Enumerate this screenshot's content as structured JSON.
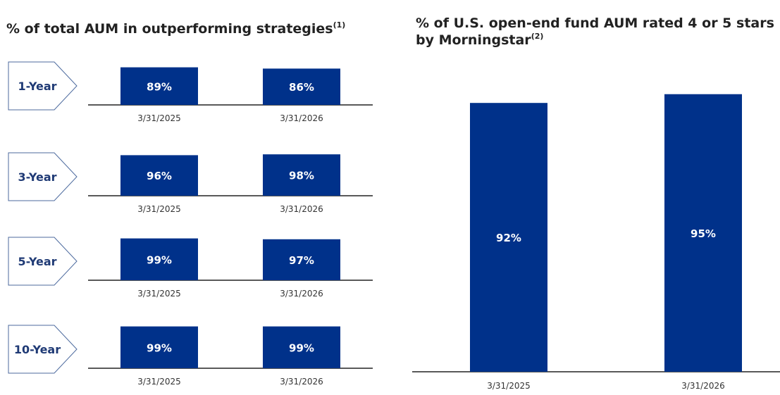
{
  "left_panel": {
    "title": "% of total AUM in outperforming strategies",
    "title_note": "(1)"
  },
  "right_panel": {
    "title": "% of U.S. open-end fund AUM rated 4 or 5 stars by Morningstar",
    "title_note": "(2)"
  },
  "colors": {
    "bar": "#00318A",
    "label_text": "#1F3A75",
    "chevron_border": "#4C6A9E",
    "baseline": "#222222"
  },
  "chart_data": [
    {
      "type": "bar",
      "title": "% of total AUM in outperforming strategies",
      "subtitle": "",
      "xlabel": "",
      "ylabel": "",
      "categories": [
        "3/31/2025",
        "3/31/2026"
      ],
      "panels": [
        {
          "period": "1-Year",
          "values": [
            89,
            86
          ],
          "data_labels": [
            "89%",
            "86%"
          ]
        },
        {
          "period": "3-Year",
          "values": [
            96,
            98
          ],
          "data_labels": [
            "96%",
            "98%"
          ]
        },
        {
          "period": "5-Year",
          "values": [
            99,
            97
          ],
          "data_labels": [
            "99%",
            "97%"
          ]
        },
        {
          "period": "10-Year",
          "values": [
            99,
            99
          ],
          "data_labels": [
            "99%",
            "99%"
          ]
        }
      ],
      "grid": false
    },
    {
      "type": "bar",
      "title": "% of U.S. open-end fund AUM rated 4 or 5 stars by Morningstar",
      "xlabel": "",
      "ylabel": "",
      "categories": [
        "3/31/2025",
        "3/31/2026"
      ],
      "values": [
        92,
        95
      ],
      "data_labels": [
        "92%",
        "95%"
      ],
      "grid": false
    }
  ]
}
